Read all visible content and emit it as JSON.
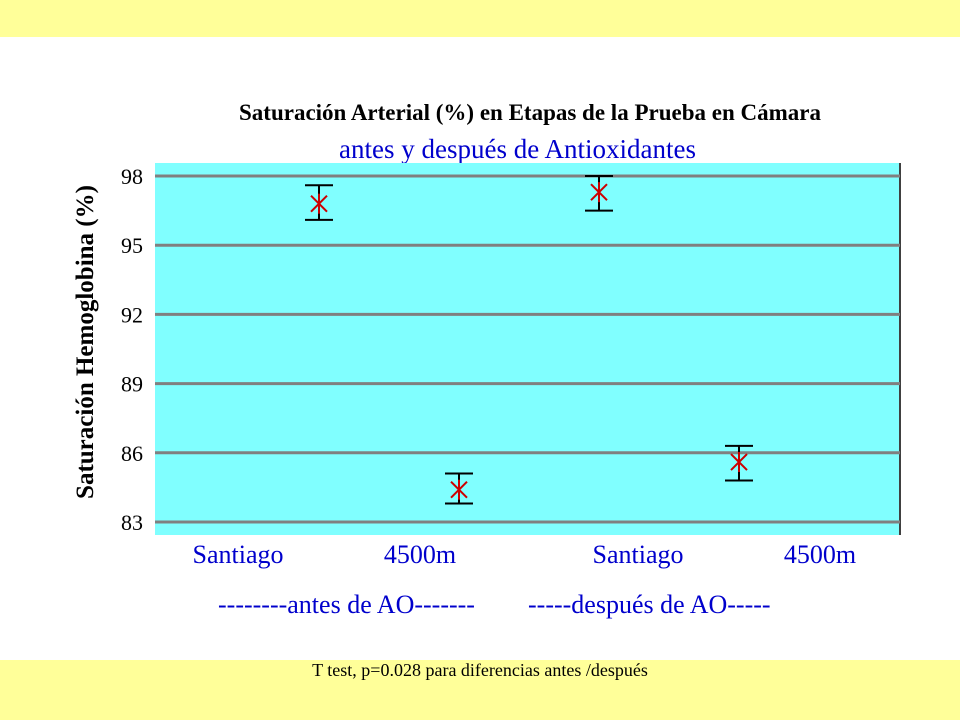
{
  "chart_data": {
    "type": "scatter",
    "title": "Saturación Arterial (%) en Etapas de la Prueba en Cámara",
    "subtitle": "antes y después de Antioxidantes",
    "ylabel": "Saturación Hemoglobina (%)",
    "categories": [
      "Santiago",
      "4500m",
      "Santiago",
      "4500m"
    ],
    "series": [
      {
        "values": [
          96.8,
          84.4,
          97.3,
          85.6
        ],
        "error_low": [
          96.1,
          83.8,
          96.5,
          84.8
        ],
        "error_high": [
          97.6,
          85.1,
          98.0,
          86.3
        ]
      }
    ],
    "ylim": [
      83,
      98
    ],
    "yticks": [
      98,
      95,
      92,
      89,
      86,
      83
    ],
    "grid": true,
    "colors": {
      "plot_bg": "#80ffff",
      "marker": "#cc0000",
      "gridline": "#808080",
      "label_text": "#0000cc",
      "band": "#ffff99"
    }
  },
  "group_labels": [
    "--------antes de AO-------",
    "-----después de AO-----"
  ],
  "footnote": "T test, p=0.028 para diferencias antes /después"
}
